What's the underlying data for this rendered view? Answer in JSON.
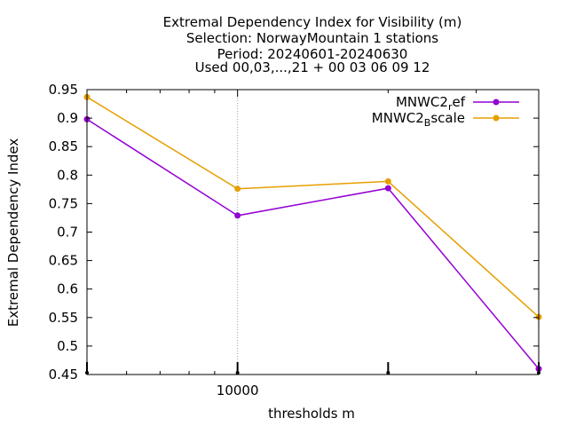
{
  "chart_data": {
    "type": "line",
    "title_lines": [
      "Extremal Dependency Index  for Visibility (m)",
      "Selection: NorwayMountain      1 stations",
      "Period: 20240601-20240630",
      "Used 00,03,...,21 + 00 03 06 09 12"
    ],
    "xlabel": "thresholds m",
    "ylabel": "Extremal Dependency Index",
    "x_scale": "log",
    "x": [
      5000,
      10000,
      20000,
      40000
    ],
    "x_tick_labels": [
      {
        "value": 10000,
        "label": "10000"
      }
    ],
    "ylim": [
      0.45,
      0.95
    ],
    "y_ticks": [
      0.45,
      0.5,
      0.55,
      0.6,
      0.65,
      0.7,
      0.75,
      0.8,
      0.85,
      0.9,
      0.95
    ],
    "y_tick_labels": [
      "0.45",
      "0.5",
      "0.55",
      "0.6",
      "0.65",
      "0.7",
      "0.75",
      "0.8",
      "0.85",
      "0.9",
      "0.95"
    ],
    "grid": "x-major",
    "legend_position": "top-right",
    "series": [
      {
        "name": "MNWC2_ref",
        "legend_main": "MNWC2",
        "legend_sub": "r",
        "legend_rest": "ef",
        "color": "#9400d3",
        "values": [
          0.898,
          0.729,
          0.777,
          0.46
        ]
      },
      {
        "name": "MNWC2_Bscale",
        "legend_main": "MNWC2",
        "legend_sub": "B",
        "legend_rest": "scale",
        "color": "#e69f00",
        "values": [
          0.937,
          0.776,
          0.789,
          0.551
        ]
      }
    ]
  }
}
